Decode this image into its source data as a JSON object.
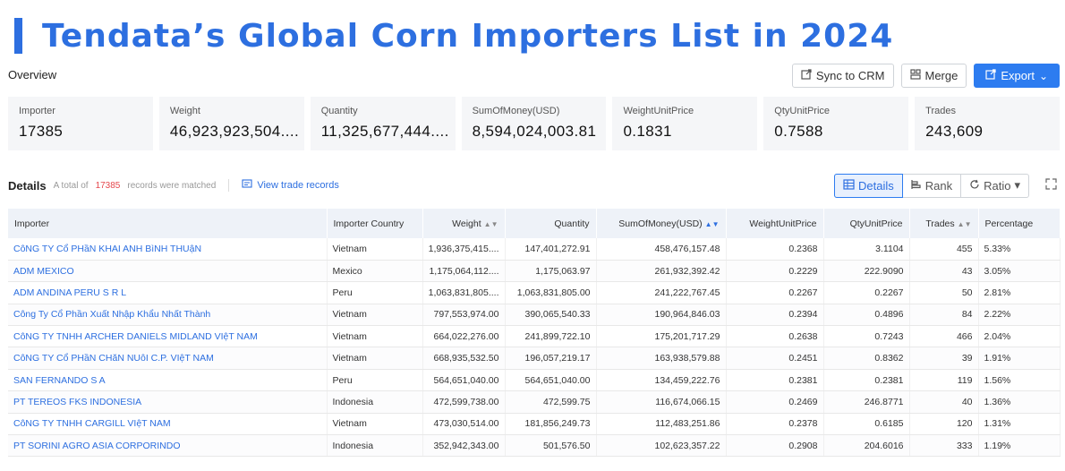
{
  "page_title": "Tendata’s Global Corn Importers List in 2024",
  "overview_label": "Overview",
  "actions": {
    "sync": "Sync to CRM",
    "merge": "Merge",
    "export": "Export"
  },
  "stats": [
    {
      "label": "Importer",
      "value": "17385"
    },
    {
      "label": "Weight",
      "value": "46,923,923,504...."
    },
    {
      "label": "Quantity",
      "value": "11,325,677,444...."
    },
    {
      "label": "SumOfMoney(USD)",
      "value": "8,594,024,003.81"
    },
    {
      "label": "WeightUnitPrice",
      "value": "0.1831"
    },
    {
      "label": "QtyUnitPrice",
      "value": "0.7588"
    },
    {
      "label": "Trades",
      "value": "243,609"
    }
  ],
  "details": {
    "title": "Details",
    "total_prefix": "A total of",
    "total_count": "17385",
    "total_suffix": "records were matched",
    "view_records": "View trade records",
    "views": [
      "Details",
      "Rank",
      "Ratio"
    ]
  },
  "table": {
    "columns": [
      "Importer",
      "Importer Country",
      "Weight",
      "Quantity",
      "SumOfMoney(USD)",
      "WeightUnitPrice",
      "QtyUnitPrice",
      "Trades",
      "Percentage"
    ],
    "rows": [
      [
        "CôNG TY Cổ PHầN KHAI ANH BìNH THUậN",
        "Vietnam",
        "1,936,375,415....",
        "147,401,272.91",
        "458,476,157.48",
        "0.2368",
        "3.1104",
        "455",
        "5.33%"
      ],
      [
        "ADM MEXICO",
        "Mexico",
        "1,175,064,112....",
        "1,175,063.97",
        "261,932,392.42",
        "0.2229",
        "222.9090",
        "43",
        "3.05%"
      ],
      [
        "ADM ANDINA PERU S R L",
        "Peru",
        "1,063,831,805....",
        "1,063,831,805.00",
        "241,222,767.45",
        "0.2267",
        "0.2267",
        "50",
        "2.81%"
      ],
      [
        "Công Ty Cổ Phần Xuất Nhập Khẩu Nhất Thành",
        "Vietnam",
        "797,553,974.00",
        "390,065,540.33",
        "190,964,846.03",
        "0.2394",
        "0.4896",
        "84",
        "2.22%"
      ],
      [
        "CôNG TY TNHH ARCHER DANIELS MIDLAND VIệT NAM",
        "Vietnam",
        "664,022,276.00",
        "241,899,722.10",
        "175,201,717.29",
        "0.2638",
        "0.7243",
        "466",
        "2.04%"
      ],
      [
        "CôNG TY Cổ PHầN CHăN NUôI C.P. VIệT NAM",
        "Vietnam",
        "668,935,532.50",
        "196,057,219.17",
        "163,938,579.88",
        "0.2451",
        "0.8362",
        "39",
        "1.91%"
      ],
      [
        "SAN FERNANDO S A",
        "Peru",
        "564,651,040.00",
        "564,651,040.00",
        "134,459,222.76",
        "0.2381",
        "0.2381",
        "119",
        "1.56%"
      ],
      [
        "PT TEREOS FKS INDONESIA",
        "Indonesia",
        "472,599,738.00",
        "472,599.75",
        "116,674,066.15",
        "0.2469",
        "246.8771",
        "40",
        "1.36%"
      ],
      [
        "CôNG TY TNHH CARGILL VIệT NAM",
        "Vietnam",
        "473,030,514.00",
        "181,856,249.73",
        "112,483,251.86",
        "0.2378",
        "0.6185",
        "120",
        "1.31%"
      ],
      [
        "PT SORINI AGRO ASIA CORPORINDO",
        "Indonesia",
        "352,942,343.00",
        "501,576.50",
        "102,623,357.22",
        "0.2908",
        "204.6016",
        "333",
        "1.19%"
      ]
    ]
  }
}
